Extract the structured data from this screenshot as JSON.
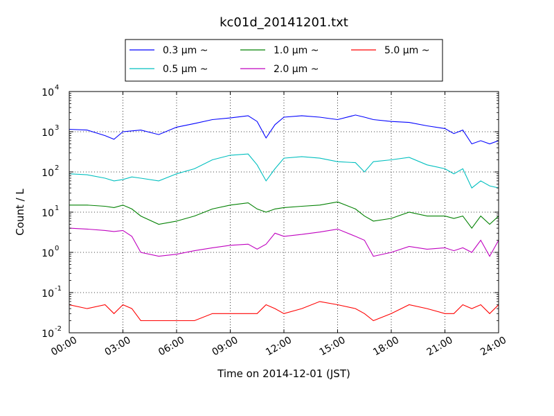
{
  "chart_data": {
    "type": "line",
    "title": "kc01d_20141201.txt",
    "xlabel": "Time on 2014-12-01 (JST)",
    "ylabel": "Count / L",
    "yscale": "log",
    "ylim": [
      0.01,
      10000
    ],
    "xlim": [
      "00:00",
      "24:00"
    ],
    "x_ticks": [
      "00:00",
      "03:00",
      "06:00",
      "09:00",
      "12:00",
      "15:00",
      "18:00",
      "21:00",
      "24:00"
    ],
    "y_ticks": [
      {
        "value": 0.01,
        "base": "10",
        "exp": "-2"
      },
      {
        "value": 0.1,
        "base": "10",
        "exp": "-1"
      },
      {
        "value": 1,
        "base": "10",
        "exp": "0"
      },
      {
        "value": 10,
        "base": "10",
        "exp": "1"
      },
      {
        "value": 100,
        "base": "10",
        "exp": "2"
      },
      {
        "value": 1000,
        "base": "10",
        "exp": "3"
      },
      {
        "value": 10000,
        "base": "10",
        "exp": "4"
      }
    ],
    "grid": true,
    "legend_position": "top",
    "times": [
      "00:00",
      "01:00",
      "02:00",
      "02:30",
      "03:00",
      "03:30",
      "04:00",
      "05:00",
      "06:00",
      "07:00",
      "08:00",
      "09:00",
      "10:00",
      "10:30",
      "11:00",
      "11:30",
      "12:00",
      "13:00",
      "14:00",
      "15:00",
      "16:00",
      "16:30",
      "17:00",
      "18:00",
      "19:00",
      "20:00",
      "21:00",
      "21:30",
      "22:00",
      "22:30",
      "23:00",
      "23:30",
      "24:00"
    ],
    "series": [
      {
        "name": "0.3 μm ~",
        "color": "#0000ff",
        "values": [
          1150,
          1100,
          800,
          650,
          1000,
          1050,
          1100,
          850,
          1300,
          1600,
          2000,
          2200,
          2500,
          1800,
          700,
          1500,
          2300,
          2500,
          2300,
          2000,
          2600,
          2300,
          2000,
          1800,
          1700,
          1400,
          1200,
          900,
          1100,
          500,
          600,
          500,
          600
        ]
      },
      {
        "name": "0.5 μm ~",
        "color": "#00bfbf",
        "values": [
          90,
          85,
          70,
          60,
          65,
          75,
          70,
          60,
          90,
          120,
          200,
          260,
          280,
          150,
          60,
          120,
          220,
          240,
          220,
          180,
          170,
          100,
          180,
          200,
          230,
          150,
          120,
          90,
          120,
          40,
          60,
          45,
          40
        ]
      },
      {
        "name": "1.0 μm ~",
        "color": "#008000",
        "values": [
          15,
          15,
          14,
          13,
          15,
          12,
          8,
          5,
          6,
          8,
          12,
          15,
          17,
          12,
          10,
          12,
          13,
          14,
          15,
          18,
          12,
          8,
          6,
          7,
          10,
          8,
          8,
          7,
          8,
          4,
          8,
          5,
          8
        ]
      },
      {
        "name": "2.0 μm ~",
        "color": "#bf00bf",
        "values": [
          4,
          3.8,
          3.5,
          3.3,
          3.5,
          2.5,
          1,
          0.8,
          0.9,
          1.1,
          1.3,
          1.5,
          1.6,
          1.2,
          1.6,
          3,
          2.5,
          2.8,
          3.2,
          3.8,
          2.5,
          2,
          0.8,
          1,
          1.4,
          1.2,
          1.3,
          1.1,
          1.3,
          1,
          2,
          0.8,
          2
        ]
      },
      {
        "name": "5.0 μm ~",
        "color": "#ff0000",
        "values": [
          0.05,
          0.04,
          0.05,
          0.03,
          0.05,
          0.04,
          0.02,
          0.02,
          0.02,
          0.02,
          0.03,
          0.03,
          0.03,
          0.03,
          0.05,
          0.04,
          0.03,
          0.04,
          0.06,
          0.05,
          0.04,
          0.03,
          0.02,
          0.03,
          0.05,
          0.04,
          0.03,
          0.03,
          0.05,
          0.04,
          0.05,
          0.03,
          0.05
        ]
      }
    ]
  }
}
